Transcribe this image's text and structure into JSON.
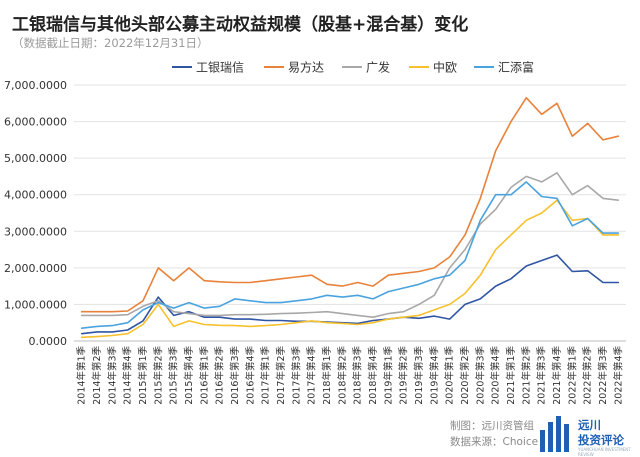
{
  "header": {
    "title": "工银瑞信与其他头部公募主动权益规模（股基+混合基）变化",
    "subtitle": "（数据截止日期：2022年12月31日）"
  },
  "footer": {
    "maker": "制图：远川资管组",
    "source": "数据来源：Choice"
  },
  "logo": {
    "line1": "远川",
    "line2": "投资评论",
    "tagline": "YUANCHUAN INVESTMENT REVIEW"
  },
  "chart_data": {
    "type": "line",
    "ylim": [
      0,
      7000
    ],
    "yticks": [
      "0.0000",
      "1,000.0000",
      "2,000.0000",
      "3,000.0000",
      "4,000.0000",
      "5,000.0000",
      "6,000.0000",
      "7,000.0000"
    ],
    "ytick_values": [
      0,
      1000,
      2000,
      3000,
      4000,
      5000,
      6000,
      7000
    ],
    "grid": true,
    "legend_position": "top",
    "categories": [
      "2014年第1季",
      "2014年第2季",
      "2014年第3季",
      "2014年第4季",
      "2015年第1季",
      "2015年第2季",
      "2015年第3季",
      "2015年第4季",
      "2016年第1季",
      "2016年第2季",
      "2016年第3季",
      "2016年第4季",
      "2017年第1季",
      "2017年第2季",
      "2017年第3季",
      "2017年第4季",
      "2018年第1季",
      "2018年第2季",
      "2018年第3季",
      "2018年第4季",
      "2019年第1季",
      "2019年第2季",
      "2019年第3季",
      "2019年第4季",
      "2020年第1季",
      "2020年第2季",
      "2020年第3季",
      "2020年第4季",
      "2021年第1季",
      "2021年第2季",
      "2021年第3季",
      "2021年第4季",
      "2022年第1季",
      "2022年第2季",
      "2022年第3季",
      "2022年第4季"
    ],
    "series": [
      {
        "name": "工银瑞信",
        "color": "#2f55a4",
        "values": [
          200,
          250,
          250,
          300,
          550,
          1200,
          700,
          800,
          650,
          650,
          600,
          600,
          560,
          560,
          540,
          540,
          520,
          500,
          480,
          560,
          600,
          650,
          620,
          680,
          600,
          1000,
          1150,
          1500,
          1700,
          2050,
          2200,
          2350,
          1900,
          1920,
          1600,
          1600
        ]
      },
      {
        "name": "易方达",
        "color": "#e8823a",
        "values": [
          800,
          800,
          800,
          820,
          1100,
          2000,
          1650,
          2000,
          1650,
          1620,
          1600,
          1600,
          1650,
          1700,
          1750,
          1800,
          1550,
          1500,
          1600,
          1500,
          1800,
          1850,
          1900,
          2000,
          2300,
          2900,
          3900,
          5200,
          6000,
          6650,
          6200,
          6500,
          5600,
          5950,
          5500,
          5600
        ]
      },
      {
        "name": "广发",
        "color": "#a8a8a8",
        "values": [
          700,
          700,
          700,
          720,
          950,
          1100,
          800,
          750,
          700,
          700,
          720,
          720,
          730,
          750,
          760,
          780,
          800,
          750,
          700,
          650,
          750,
          800,
          1000,
          1250,
          2000,
          2500,
          3200,
          3600,
          4200,
          4500,
          4350,
          4600,
          4000,
          4250,
          3900,
          3850
        ]
      },
      {
        "name": "中欧",
        "color": "#f6c12c",
        "values": [
          100,
          120,
          150,
          200,
          450,
          1000,
          400,
          550,
          450,
          430,
          420,
          400,
          420,
          450,
          500,
          550,
          500,
          480,
          450,
          500,
          600,
          650,
          700,
          850,
          1000,
          1300,
          1800,
          2500,
          2900,
          3300,
          3500,
          3850,
          3300,
          3350,
          2900,
          2900
        ]
      },
      {
        "name": "汇添富",
        "color": "#4aa3df",
        "values": [
          350,
          400,
          420,
          500,
          850,
          1050,
          900,
          1050,
          900,
          950,
          1150,
          1100,
          1050,
          1050,
          1100,
          1150,
          1250,
          1200,
          1250,
          1150,
          1350,
          1450,
          1550,
          1700,
          1800,
          2200,
          3300,
          4000,
          4000,
          4350,
          3950,
          3900,
          3150,
          3350,
          2950,
          2950
        ]
      }
    ]
  }
}
